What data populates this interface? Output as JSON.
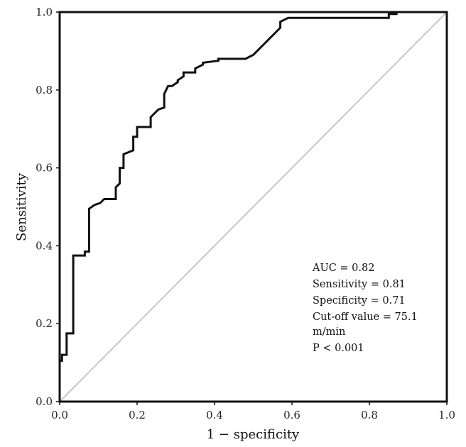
{
  "chart_data": {
    "type": "line",
    "xlabel": "1 − specificity",
    "ylabel": "Sensitivity",
    "xlim": [
      0,
      1
    ],
    "ylim": [
      0,
      1
    ],
    "xticks": [
      "0.0",
      "0.2",
      "0.4",
      "0.6",
      "0.8",
      "1.0"
    ],
    "yticks": [
      "0.0",
      "0.2",
      "0.4",
      "0.6",
      "0.8",
      "1.0"
    ],
    "grid": false,
    "colors": {
      "roc": "#111111",
      "reference": "#c8c8c8",
      "frame": "#111111"
    },
    "series": [
      {
        "x": [
          0.0,
          0.0,
          0.006,
          0.006,
          0.018,
          0.018,
          0.035,
          0.035,
          0.065,
          0.065,
          0.076,
          0.076,
          0.09,
          0.105,
          0.115,
          0.145,
          0.145,
          0.155,
          0.155,
          0.165,
          0.165,
          0.19,
          0.19,
          0.2,
          0.2,
          0.235,
          0.235,
          0.245,
          0.255,
          0.27,
          0.27,
          0.28,
          0.29,
          0.305,
          0.305,
          0.32,
          0.32,
          0.35,
          0.35,
          0.37,
          0.37,
          0.41,
          0.41,
          0.48,
          0.5,
          0.51,
          0.52,
          0.53,
          0.54,
          0.55,
          0.56,
          0.57,
          0.57,
          0.59,
          0.59,
          0.85,
          0.85,
          0.87,
          0.87,
          1.0
        ],
        "y": [
          0.0,
          0.105,
          0.105,
          0.12,
          0.12,
          0.175,
          0.175,
          0.375,
          0.375,
          0.385,
          0.385,
          0.495,
          0.505,
          0.51,
          0.52,
          0.52,
          0.55,
          0.56,
          0.6,
          0.6,
          0.635,
          0.645,
          0.68,
          0.68,
          0.705,
          0.705,
          0.73,
          0.74,
          0.75,
          0.755,
          0.79,
          0.81,
          0.81,
          0.82,
          0.825,
          0.835,
          0.845,
          0.845,
          0.855,
          0.865,
          0.87,
          0.875,
          0.88,
          0.88,
          0.89,
          0.9,
          0.91,
          0.92,
          0.93,
          0.94,
          0.95,
          0.96,
          0.975,
          0.985,
          0.985,
          0.985,
          0.995,
          0.995,
          1.0,
          1.0
        ]
      },
      {
        "x": [
          0,
          1
        ],
        "y": [
          0,
          1
        ]
      }
    ],
    "annotations": [
      "AUC = 0.82",
      "Sensitivity = 0.81",
      "Specificity = 0.71",
      "Cut-off value = 75.1",
      "m/min",
      "P < 0.001"
    ]
  }
}
